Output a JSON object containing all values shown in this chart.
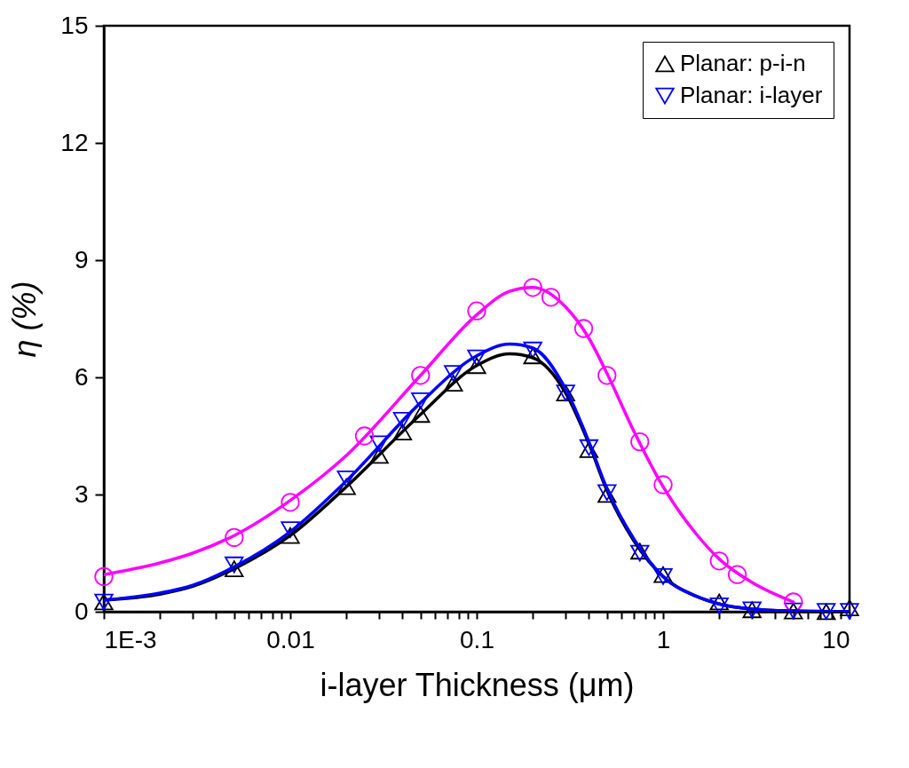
{
  "chart_data": {
    "type": "scatter",
    "xlabel": "i-layer Thickness (μm)",
    "ylabel": "η (%)",
    "log": "x",
    "xlim": [
      0.001,
      10
    ],
    "ylim": [
      0,
      15
    ],
    "xticks": [
      {
        "value": 0.001,
        "label": "1E-3"
      },
      {
        "value": 0.002,
        "label": null
      },
      {
        "value": 0.003,
        "label": null
      },
      {
        "value": 0.004,
        "label": null
      },
      {
        "value": 0.005,
        "label": null
      },
      {
        "value": 0.006,
        "label": null
      },
      {
        "value": 0.007,
        "label": null
      },
      {
        "value": 0.008,
        "label": null
      },
      {
        "value": 0.009,
        "label": null
      },
      0.01,
      {
        "value": 0.02,
        "label": null
      },
      {
        "value": 0.03,
        "label": null
      },
      {
        "value": 0.04,
        "label": null
      },
      {
        "value": 0.05,
        "label": null
      },
      {
        "value": 0.06,
        "label": null
      },
      {
        "value": 0.07,
        "label": null
      },
      {
        "value": 0.08,
        "label": null
      },
      {
        "value": 0.09,
        "label": null
      },
      0.1,
      {
        "value": 0.2,
        "label": null
      },
      {
        "value": 0.3,
        "label": null
      },
      {
        "value": 0.4,
        "label": null
      },
      {
        "value": 0.5,
        "label": null
      },
      {
        "value": 0.6,
        "label": null
      },
      {
        "value": 0.7,
        "label": null
      },
      {
        "value": 0.8,
        "label": null
      },
      {
        "value": 0.9,
        "label": null
      },
      1,
      {
        "value": 2,
        "label": null
      },
      {
        "value": 3,
        "label": null
      },
      {
        "value": 4,
        "label": null
      },
      {
        "value": 5,
        "label": null
      },
      {
        "value": 6,
        "label": null
      },
      {
        "value": 7,
        "label": null
      },
      {
        "value": 8,
        "label": null
      },
      {
        "value": 9,
        "label": null
      },
      10
    ],
    "yticks": [
      0,
      3,
      6,
      9,
      12,
      15
    ],
    "grid": false,
    "legend": "top right",
    "series": [
      {
        "name": "Planar: p-i-n",
        "type": "scatter",
        "marker": "triangle",
        "color": "#000000",
        "x": [
          0.001,
          0.005,
          0.01,
          0.02,
          0.03,
          0.04,
          0.05,
          0.075,
          0.1,
          0.2,
          0.3,
          0.4,
          0.5,
          0.75,
          1,
          2,
          3,
          5,
          7.5,
          10
        ],
        "values": [
          0.25,
          1.1,
          1.95,
          3.2,
          4.0,
          4.6,
          5.05,
          5.85,
          6.3,
          6.55,
          5.6,
          4.15,
          3.0,
          1.55,
          0.95,
          0.25,
          0.05,
          0.02,
          0.0,
          0.1
        ]
      },
      {
        "name": "Planar: i-layer",
        "type": "scatter",
        "marker": "triangle-down",
        "color": "#0000ff",
        "x": [
          0.001,
          0.005,
          0.01,
          0.02,
          0.03,
          0.04,
          0.05,
          0.075,
          0.1,
          0.2,
          0.3,
          0.4,
          0.5,
          0.75,
          1,
          2,
          3,
          5,
          7.5,
          10
        ],
        "values": [
          0.25,
          1.2,
          2.1,
          3.4,
          4.3,
          4.9,
          5.4,
          6.1,
          6.5,
          6.7,
          5.6,
          4.2,
          3.05,
          1.5,
          0.9,
          0.15,
          0.05,
          0.02,
          0.01,
          0.01
        ]
      },
      {
        "type": "scatter",
        "marker": "circle",
        "color": "#ff00ff",
        "x": [
          0.001,
          0.005,
          0.01,
          0.025,
          0.05,
          0.1,
          0.2,
          0.25,
          0.375,
          0.5,
          0.75,
          1,
          2,
          2.5,
          5
        ],
        "values": [
          0.9,
          1.9,
          2.8,
          4.5,
          6.05,
          7.7,
          8.3,
          8.05,
          7.25,
          6.05,
          4.35,
          3.25,
          1.3,
          0.95,
          0.25
        ]
      },
      {
        "type": "line",
        "line_style": "solid",
        "color": "#000000",
        "x": [
          0.001,
          0.002,
          0.003,
          0.005,
          0.01,
          0.02,
          0.05,
          0.1,
          0.15,
          0.2,
          0.3,
          0.4,
          0.5,
          0.7,
          1,
          1.5,
          2,
          3,
          5,
          10
        ],
        "values": [
          0.3,
          0.45,
          0.65,
          1.1,
          1.95,
          3.2,
          5.05,
          6.3,
          6.6,
          6.5,
          5.6,
          4.3,
          3.1,
          1.8,
          0.9,
          0.4,
          0.2,
          0.07,
          0.02,
          0.0
        ]
      },
      {
        "type": "line",
        "line_style": "solid",
        "color": "#0000ff",
        "x": [
          0.001,
          0.002,
          0.003,
          0.005,
          0.01,
          0.02,
          0.05,
          0.1,
          0.15,
          0.2,
          0.3,
          0.4,
          0.5,
          0.7,
          1,
          1.5,
          2,
          3,
          5,
          10
        ],
        "values": [
          0.3,
          0.48,
          0.68,
          1.15,
          2.05,
          3.35,
          5.35,
          6.55,
          6.85,
          6.75,
          5.7,
          4.35,
          3.15,
          1.85,
          0.9,
          0.4,
          0.2,
          0.07,
          0.02,
          0.0
        ]
      },
      {
        "type": "line",
        "line_style": "solid",
        "color": "#ff00ff",
        "x": [
          0.001,
          0.002,
          0.003,
          0.005,
          0.01,
          0.02,
          0.05,
          0.1,
          0.15,
          0.2,
          0.3,
          0.4,
          0.5,
          0.7,
          1,
          1.5,
          2,
          3,
          5
        ],
        "values": [
          0.95,
          1.25,
          1.5,
          1.95,
          2.85,
          4.0,
          6.05,
          7.6,
          8.2,
          8.3,
          7.8,
          7.0,
          6.1,
          4.6,
          3.2,
          2.0,
          1.35,
          0.75,
          0.25
        ]
      }
    ]
  }
}
